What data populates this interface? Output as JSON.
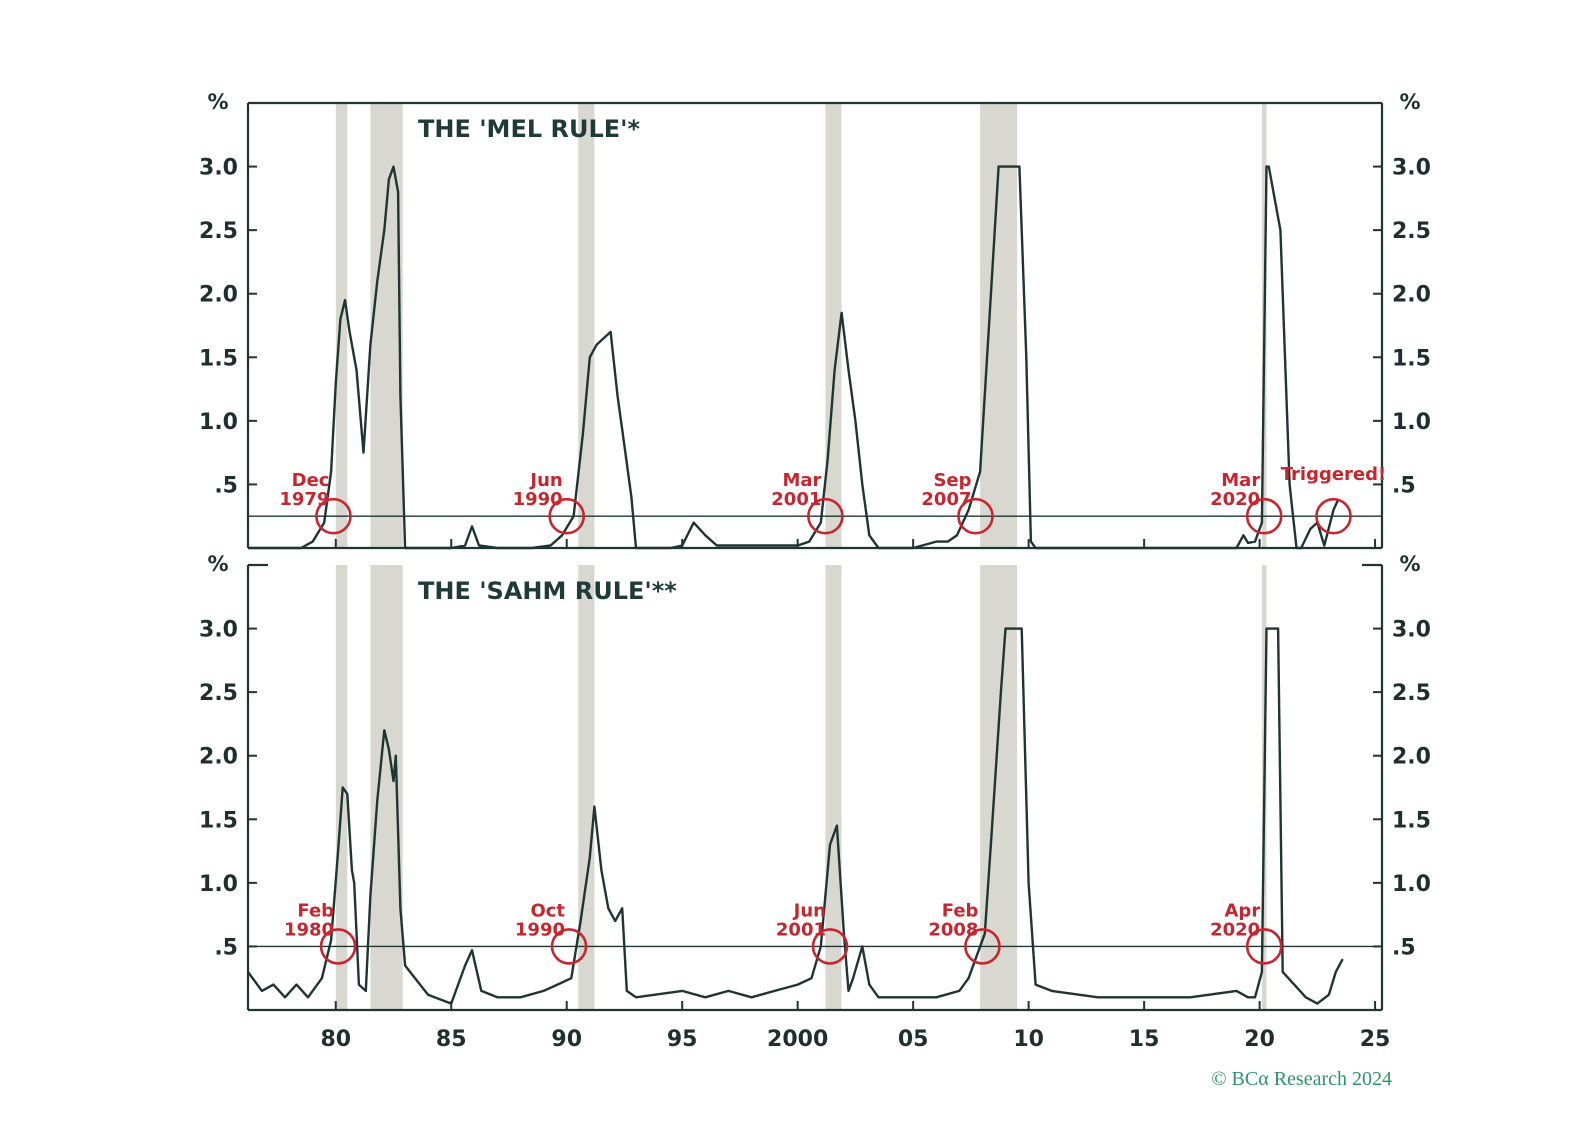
{
  "credit": "© BCα Research 2024",
  "colors": {
    "line": "#1e3532",
    "frame": "#1e3532",
    "shade": "#d8d8d0",
    "annotation": "#c8262e",
    "credit": "#2f9468"
  },
  "chart_data": [
    {
      "type": "line",
      "title": "THE 'MEL RULE'*",
      "unit_label": "%",
      "xlim": [
        1976.2,
        2025.3
      ],
      "ylim": [
        0,
        3.5
      ],
      "x_ticks": [
        1980,
        1985,
        1990,
        1995,
        2000,
        2005,
        2010,
        2015,
        2020,
        2025
      ],
      "x_tick_labels": [
        "80",
        "85",
        "90",
        "95",
        "2000",
        "05",
        "10",
        "15",
        "20",
        "25"
      ],
      "y_ticks": [
        0.5,
        1.0,
        1.5,
        2.0,
        2.5,
        3.0
      ],
      "y_tick_labels": [
        ".5",
        "1.0",
        "1.5",
        "2.0",
        "2.5",
        "3.0"
      ],
      "threshold": 0.25,
      "recessions": [
        [
          1980.0,
          1980.5
        ],
        [
          1981.5,
          1982.9
        ],
        [
          1990.5,
          1991.2
        ],
        [
          2001.2,
          2001.9
        ],
        [
          2007.9,
          2009.5
        ],
        [
          2020.1,
          2020.3
        ]
      ],
      "series": [
        {
          "x": [
            1976.2,
            1978.5,
            1979.0,
            1979.5,
            1979.8,
            1980.0,
            1980.2,
            1980.4,
            1980.6,
            1980.9,
            1981.2,
            1981.5,
            1981.8,
            1982.1,
            1982.3,
            1982.5,
            1982.7,
            1982.8,
            1983.0,
            1985.0,
            1985.6,
            1985.9,
            1986.2,
            1987.0,
            1988.5,
            1989.3,
            1989.8,
            1990.3,
            1990.7,
            1991.0,
            1991.3,
            1991.6,
            1991.9,
            1992.2,
            1992.5,
            1992.8,
            1993.0,
            1994.5,
            1995.0,
            1995.5,
            1996.0,
            1996.5,
            2000.0,
            2000.5,
            2001.0,
            2001.3,
            2001.6,
            2001.9,
            2002.2,
            2002.5,
            2002.8,
            2003.1,
            2003.5,
            2005.0,
            2006.0,
            2006.5,
            2006.9,
            2007.4,
            2007.9,
            2008.3,
            2008.7,
            2008.9,
            2009.6,
            2009.9,
            2010.1,
            2010.3,
            2015.0,
            2019.0,
            2019.3,
            2019.5,
            2019.8,
            2020.1,
            2020.3,
            2020.4,
            2020.9,
            2021.3,
            2021.6,
            2021.8,
            2022.2,
            2022.5,
            2022.8,
            2023.2,
            2023.4
          ],
          "y": [
            0,
            0,
            0.05,
            0.2,
            0.6,
            1.3,
            1.8,
            1.95,
            1.7,
            1.4,
            0.75,
            1.6,
            2.1,
            2.5,
            2.9,
            3.0,
            2.8,
            1.2,
            0,
            0,
            0.02,
            0.17,
            0.02,
            0,
            0,
            0.02,
            0.1,
            0.25,
            0.9,
            1.5,
            1.6,
            1.65,
            1.7,
            1.2,
            0.8,
            0.4,
            0,
            0,
            0.02,
            0.2,
            0.1,
            0.02,
            0.02,
            0.05,
            0.2,
            0.7,
            1.4,
            1.85,
            1.4,
            1.0,
            0.5,
            0.1,
            0,
            0,
            0.05,
            0.05,
            0.1,
            0.3,
            0.6,
            1.8,
            3.0,
            3.0,
            3.0,
            1.5,
            0.05,
            0,
            0,
            0,
            0.1,
            0.04,
            0.05,
            0.2,
            3.0,
            3.0,
            2.5,
            0.5,
            0,
            0,
            0.15,
            0.2,
            0.02,
            0.3,
            0.38
          ]
        }
      ]
    },
    {
      "type": "line",
      "title": "THE 'SAHM RULE'**",
      "unit_label": "%",
      "xlim": [
        1976.2,
        2025.3
      ],
      "ylim": [
        0,
        3.5
      ],
      "x_ticks": [
        1980,
        1985,
        1990,
        1995,
        2000,
        2005,
        2010,
        2015,
        2020,
        2025
      ],
      "x_tick_labels": [
        "80",
        "85",
        "90",
        "95",
        "2000",
        "05",
        "10",
        "15",
        "20",
        "25"
      ],
      "y_ticks": [
        0.5,
        1.0,
        1.5,
        2.0,
        2.5,
        3.0
      ],
      "y_tick_labels": [
        ".5",
        "1.0",
        "1.5",
        "2.0",
        "2.5",
        "3.0"
      ],
      "threshold": 0.5,
      "recessions": [
        [
          1980.0,
          1980.5
        ],
        [
          1981.5,
          1982.9
        ],
        [
          1990.5,
          1991.2
        ],
        [
          2001.2,
          2001.9
        ],
        [
          2007.9,
          2009.5
        ],
        [
          2020.1,
          2020.3
        ]
      ],
      "series": [
        {
          "x": [
            1976.2,
            1976.8,
            1977.3,
            1977.8,
            1978.3,
            1978.8,
            1979.4,
            1979.8,
            1980.1,
            1980.3,
            1980.5,
            1980.7,
            1980.8,
            1981.0,
            1981.3,
            1981.5,
            1981.8,
            1982.1,
            1982.3,
            1982.5,
            1982.6,
            1982.8,
            1983.0,
            1983.3,
            1984.0,
            1985.0,
            1985.6,
            1985.9,
            1986.3,
            1987.0,
            1988.0,
            1989.0,
            1989.6,
            1990.2,
            1990.6,
            1991.0,
            1991.2,
            1991.5,
            1991.8,
            1992.1,
            1992.4,
            1992.6,
            1993.0,
            1995.0,
            1996.0,
            1997.0,
            1998.0,
            1999.0,
            2000.0,
            2000.6,
            2001.0,
            2001.4,
            2001.7,
            2002.0,
            2002.2,
            2002.4,
            2002.8,
            2003.1,
            2003.5,
            2005.0,
            2006.0,
            2007.0,
            2007.4,
            2007.8,
            2008.1,
            2008.4,
            2008.8,
            2009.0,
            2009.7,
            2010.0,
            2010.3,
            2011.0,
            2013.0,
            2015.0,
            2017.0,
            2019.0,
            2019.5,
            2019.8,
            2020.1,
            2020.3,
            2020.4,
            2020.8,
            2021.0,
            2021.5,
            2022.0,
            2022.5,
            2023.0,
            2023.3,
            2023.6
          ],
          "y": [
            0.3,
            0.15,
            0.2,
            0.1,
            0.2,
            0.1,
            0.25,
            0.55,
            1.25,
            1.75,
            1.7,
            1.1,
            1.0,
            0.2,
            0.15,
            0.9,
            1.65,
            2.2,
            2.05,
            1.8,
            2.0,
            0.8,
            0.35,
            0.28,
            0.12,
            0.05,
            0.35,
            0.47,
            0.15,
            0.1,
            0.1,
            0.15,
            0.2,
            0.25,
            0.7,
            1.2,
            1.6,
            1.1,
            0.8,
            0.7,
            0.8,
            0.15,
            0.1,
            0.15,
            0.1,
            0.15,
            0.1,
            0.15,
            0.2,
            0.25,
            0.5,
            1.3,
            1.45,
            0.6,
            0.15,
            0.25,
            0.5,
            0.2,
            0.1,
            0.1,
            0.1,
            0.15,
            0.25,
            0.45,
            0.6,
            1.4,
            2.5,
            3.0,
            3.0,
            1.0,
            0.2,
            0.15,
            0.1,
            0.1,
            0.1,
            0.15,
            0.1,
            0.1,
            0.3,
            3.0,
            3.0,
            3.0,
            0.3,
            0.2,
            0.1,
            0.05,
            0.12,
            0.3,
            0.4
          ]
        }
      ]
    }
  ],
  "annotations": [
    {
      "panel": 0,
      "x": 1979.9,
      "lines": [
        "Dec",
        "1979"
      ],
      "align": "end"
    },
    {
      "panel": 0,
      "x": 1990.0,
      "lines": [
        "Jun",
        "1990"
      ],
      "align": "end"
    },
    {
      "panel": 0,
      "x": 2001.2,
      "lines": [
        "Mar",
        "2001"
      ],
      "align": "end"
    },
    {
      "panel": 0,
      "x": 2007.7,
      "lines": [
        "Sep",
        "2007"
      ],
      "align": "end"
    },
    {
      "panel": 0,
      "x": 2020.2,
      "lines": [
        "Mar",
        "2020"
      ],
      "align": "end"
    },
    {
      "panel": 0,
      "x": 2023.2,
      "lines": [
        "Triggered!"
      ],
      "align": "middle"
    },
    {
      "panel": 1,
      "x": 1980.1,
      "lines": [
        "Feb",
        "1980"
      ],
      "align": "end"
    },
    {
      "panel": 1,
      "x": 1990.1,
      "lines": [
        "Oct",
        "1990"
      ],
      "align": "end"
    },
    {
      "panel": 1,
      "x": 2001.4,
      "lines": [
        "Jun",
        "2001"
      ],
      "align": "end"
    },
    {
      "panel": 1,
      "x": 2008.0,
      "lines": [
        "Feb",
        "2008"
      ],
      "align": "end"
    },
    {
      "panel": 1,
      "x": 2020.2,
      "lines": [
        "Apr",
        "2020"
      ],
      "align": "end"
    }
  ]
}
